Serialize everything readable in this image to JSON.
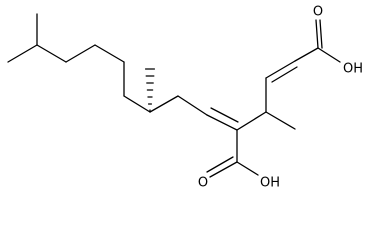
{
  "atoms": {
    "top_carbonyl_o": "O",
    "top_hydroxyl": "OH",
    "bottom_carbonyl_o": "O",
    "bottom_hydroxyl": "OH"
  }
}
